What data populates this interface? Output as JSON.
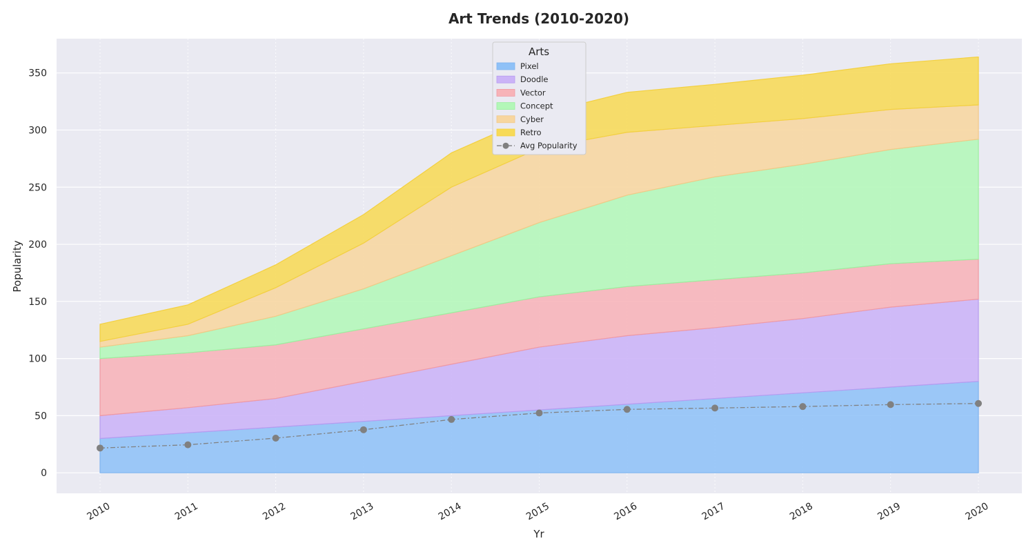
{
  "chart_data": {
    "type": "area",
    "stacked": true,
    "title": "Art Trends (2010-2020)",
    "xlabel": "Yr",
    "ylabel": "Popularity",
    "x": [
      "2010",
      "2011",
      "2012",
      "2013",
      "2014",
      "2015",
      "2016",
      "2017",
      "2018",
      "2019",
      "2020"
    ],
    "ylim": [
      -18,
      380
    ],
    "yticks": [
      0,
      50,
      100,
      150,
      200,
      250,
      300,
      350
    ],
    "grid": true,
    "legend": {
      "title": "Arts",
      "placement": "top-center"
    },
    "series": [
      {
        "name": "Pixel",
        "color": "#8fc1f7",
        "line": "#7fb3ee",
        "values": [
          30,
          35,
          40,
          45,
          50,
          55,
          60,
          65,
          70,
          75,
          80
        ]
      },
      {
        "name": "Doodle",
        "color": "#cbb3f7",
        "line": "#b79cf0",
        "values": [
          20,
          22,
          25,
          35,
          45,
          55,
          60,
          62,
          65,
          70,
          72
        ]
      },
      {
        "name": "Vector",
        "color": "#f7b3b8",
        "line": "#f09aa3",
        "values": [
          50,
          48,
          47,
          46,
          45,
          44,
          43,
          42,
          40,
          38,
          35
        ]
      },
      {
        "name": "Concept",
        "color": "#b3f7b8",
        "line": "#9cef9f",
        "values": [
          10,
          15,
          25,
          35,
          50,
          65,
          80,
          90,
          95,
          100,
          105
        ]
      },
      {
        "name": "Cyber",
        "color": "#f7d69f",
        "line": "#f2c987",
        "values": [
          5,
          10,
          25,
          40,
          60,
          65,
          55,
          45,
          40,
          35,
          30
        ]
      },
      {
        "name": "Retro",
        "color": "#f7da57",
        "line": "#f3d040",
        "values": [
          15,
          17,
          20,
          25,
          30,
          30,
          35,
          36,
          38,
          40,
          42
        ]
      }
    ],
    "line_series": {
      "name": "Avg Popularity",
      "color": "#808080",
      "values": [
        21.67,
        24.5,
        30.33,
        37.67,
        46.67,
        52.33,
        55.5,
        56.67,
        58,
        59.67,
        60.67
      ]
    }
  }
}
